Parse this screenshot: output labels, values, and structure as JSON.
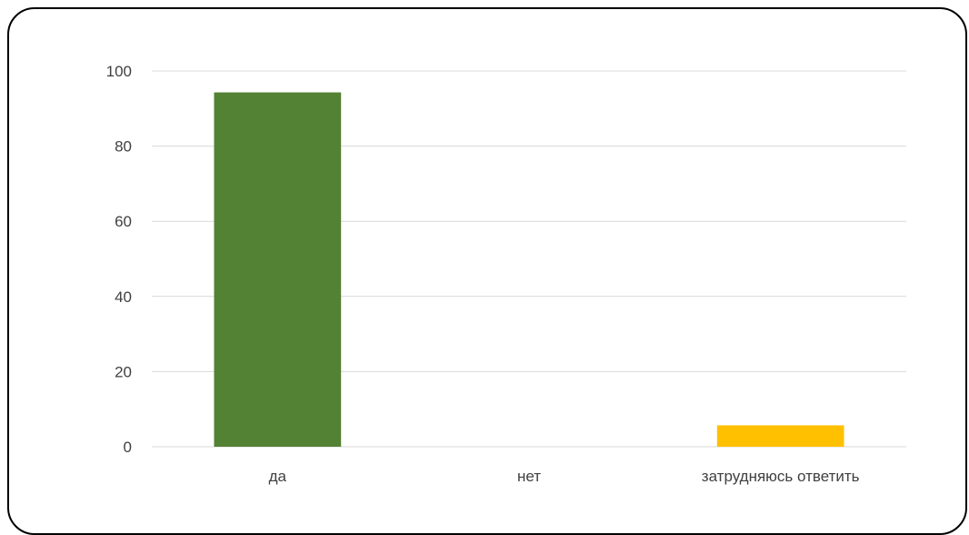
{
  "chart_data": {
    "type": "bar",
    "categories": [
      "да",
      "нет",
      "затрудняюсь ответить"
    ],
    "values": [
      94.3,
      0,
      5.7
    ],
    "colors": [
      "#548235",
      "#A5A5A5",
      "#FFC000"
    ],
    "title": "",
    "xlabel": "",
    "ylabel": "",
    "ylim": [
      0,
      100
    ],
    "yticks": [
      0,
      20,
      40,
      60,
      80,
      100
    ],
    "gridline_color": "#D9D9D9",
    "grid": true,
    "legend": "none"
  }
}
